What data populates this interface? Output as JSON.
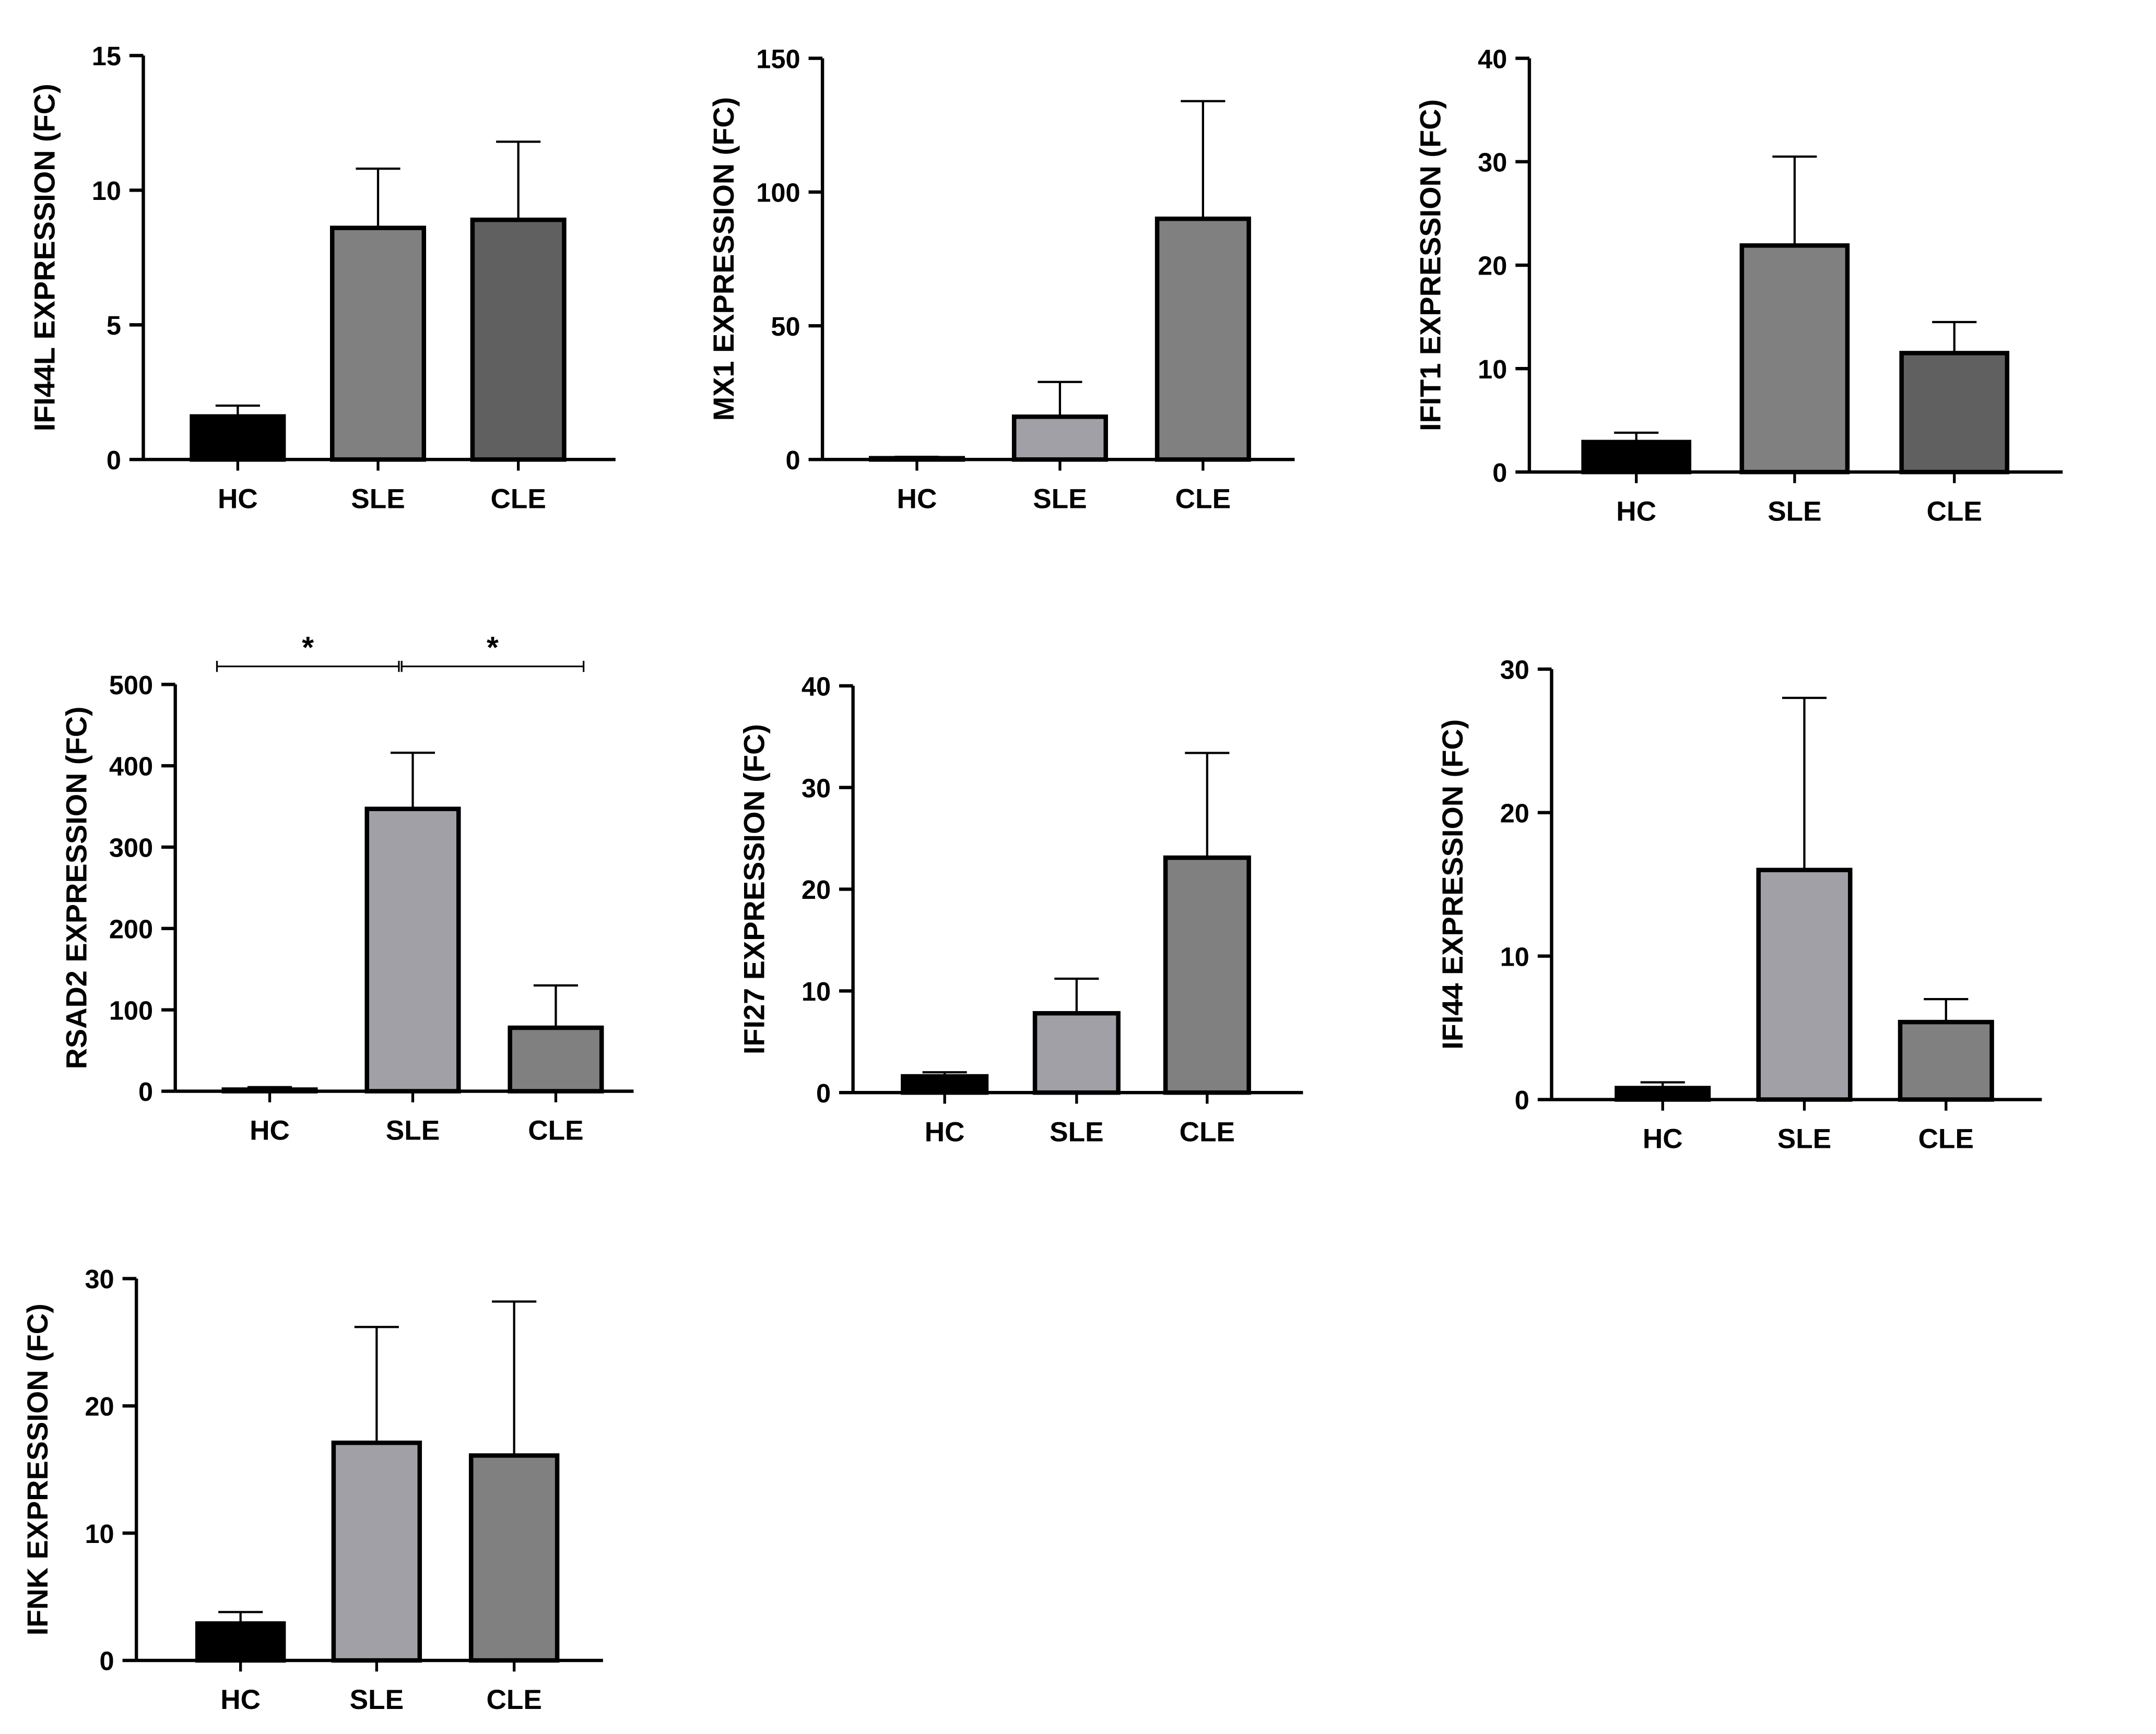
{
  "chart_data": [
    {
      "type": "bar",
      "title": "",
      "ylabel": "IFI44L EXPRESSION (FC)",
      "xlabel": "",
      "categories": [
        "HC",
        "SLE",
        "CLE"
      ],
      "values": [
        1.6,
        8.6,
        8.9
      ],
      "error_upper": [
        2.0,
        10.8,
        11.8
      ],
      "ylim": [
        0,
        15
      ],
      "yticks": [
        0,
        5,
        10,
        15
      ],
      "colors": [
        "#000000",
        "#808080",
        "#606060"
      ],
      "significance": []
    },
    {
      "type": "bar",
      "title": "",
      "ylabel": "MX1 EXPRESSION (FC)",
      "xlabel": "",
      "categories": [
        "HC",
        "SLE",
        "CLE"
      ],
      "values": [
        0.5,
        16,
        90
      ],
      "error_upper": [
        1,
        29,
        134
      ],
      "ylim": [
        0,
        150
      ],
      "yticks": [
        0,
        50,
        100,
        150
      ],
      "colors": [
        "#000000",
        "#a1a0a6",
        "#808080"
      ],
      "significance": []
    },
    {
      "type": "bar",
      "title": "",
      "ylabel": "IFIT1 EXPRESSION (FC)",
      "xlabel": "",
      "categories": [
        "HC",
        "SLE",
        "CLE"
      ],
      "values": [
        2.9,
        21.9,
        11.5
      ],
      "error_upper": [
        3.8,
        30.5,
        14.5
      ],
      "ylim": [
        0,
        40
      ],
      "yticks": [
        0,
        10,
        20,
        30,
        40
      ],
      "colors": [
        "#000000",
        "#808080",
        "#606060"
      ],
      "significance": []
    },
    {
      "type": "bar",
      "title": "",
      "ylabel": "RSAD2 EXPRESSION (FC)",
      "xlabel": "",
      "categories": [
        "HC",
        "SLE",
        "CLE"
      ],
      "values": [
        2,
        347,
        78
      ],
      "error_upper": [
        5,
        416,
        130
      ],
      "ylim": [
        0,
        500
      ],
      "yticks": [
        0,
        100,
        200,
        300,
        400,
        500
      ],
      "colors": [
        "#000000",
        "#a1a0a6",
        "#808080"
      ],
      "significance": [
        {
          "from": "HC",
          "to": "SLE",
          "label": "*"
        },
        {
          "from": "SLE",
          "to": "CLE",
          "label": "*"
        }
      ]
    },
    {
      "type": "bar",
      "title": "",
      "ylabel": "IFI27 EXPRESSION (FC)",
      "xlabel": "",
      "categories": [
        "HC",
        "SLE",
        "CLE"
      ],
      "values": [
        1.6,
        7.8,
        23.1
      ],
      "error_upper": [
        2.0,
        11.2,
        33.4
      ],
      "ylim": [
        0,
        40
      ],
      "yticks": [
        0,
        10,
        20,
        30,
        40
      ],
      "colors": [
        "#000000",
        "#a1a0a6",
        "#808080"
      ],
      "significance": []
    },
    {
      "type": "bar",
      "title": "",
      "ylabel": "IFI44 EXPRESSION (FC)",
      "xlabel": "",
      "categories": [
        "HC",
        "SLE",
        "CLE"
      ],
      "values": [
        0.8,
        16,
        5.4
      ],
      "error_upper": [
        1.2,
        28,
        7.0
      ],
      "ylim": [
        0,
        30
      ],
      "yticks": [
        0,
        10,
        20,
        30
      ],
      "colors": [
        "#000000",
        "#a1a0a6",
        "#808080"
      ],
      "significance": []
    },
    {
      "type": "bar",
      "title": "",
      "ylabel": "IFNK EXPRESSION (FC)",
      "xlabel": "",
      "categories": [
        "HC",
        "SLE",
        "CLE"
      ],
      "values": [
        2.9,
        17.1,
        16.1
      ],
      "error_upper": [
        3.8,
        26.2,
        28.2
      ],
      "ylim": [
        0,
        30
      ],
      "yticks": [
        0,
        10,
        20,
        30
      ],
      "colors": [
        "#000000",
        "#a1a0a6",
        "#808080"
      ],
      "significance": []
    }
  ]
}
